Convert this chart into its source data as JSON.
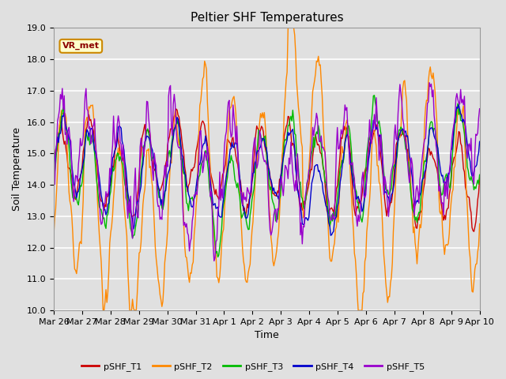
{
  "title": "Peltier SHF Temperatures",
  "xlabel": "Time",
  "ylabel": "Soil Temperature",
  "ylim": [
    10.0,
    19.0
  ],
  "yticks": [
    10.0,
    11.0,
    12.0,
    13.0,
    14.0,
    15.0,
    16.0,
    17.0,
    18.0,
    19.0
  ],
  "xtick_labels": [
    "Mar 26",
    "Mar 27",
    "Mar 28",
    "Mar 29",
    "Mar 30",
    "Mar 31",
    "Apr 1",
    "Apr 2",
    "Apr 3",
    "Apr 4",
    "Apr 5",
    "Apr 6",
    "Apr 7",
    "Apr 8",
    "Apr 9",
    "Apr 10"
  ],
  "legend_label": "VR_met",
  "series_labels": [
    "pSHF_T1",
    "pSHF_T2",
    "pSHF_T3",
    "pSHF_T4",
    "pSHF_T5"
  ],
  "series_colors": [
    "#cc0000",
    "#ff8800",
    "#00bb00",
    "#0000cc",
    "#9900cc"
  ],
  "background_color": "#e0e0e0",
  "axes_bg_color": "#e0e0e0",
  "grid_color": "#ffffff",
  "title_fontsize": 11,
  "axis_fontsize": 9,
  "tick_fontsize": 8,
  "linewidth": 1.0,
  "legend_annotation_bg": "#ffffcc",
  "legend_annotation_border": "#cc8800",
  "figsize": [
    6.4,
    4.8
  ],
  "dpi": 100
}
